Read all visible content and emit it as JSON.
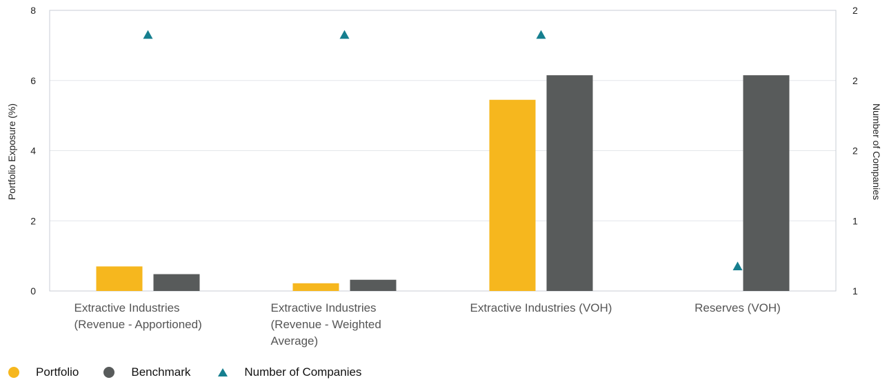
{
  "chart_data": {
    "type": "bar",
    "categories": [
      [
        "Extractive Industries",
        "(Revenue - Apportioned)"
      ],
      [
        "Extractive Industries",
        "(Revenue - Weighted",
        "Average)"
      ],
      [
        "Extractive Industries (VOH)"
      ],
      [
        "Reserves (VOH)"
      ]
    ],
    "series": [
      {
        "name": "Portfolio",
        "kind": "bar",
        "axis": "left",
        "color": "#f6b71e",
        "values": [
          0.7,
          0.22,
          5.45,
          0
        ]
      },
      {
        "name": "Benchmark",
        "kind": "bar",
        "axis": "left",
        "color": "#585b5b",
        "values": [
          0.48,
          0.32,
          6.15,
          6.15
        ]
      },
      {
        "name": "Number of Companies",
        "kind": "marker",
        "axis": "right",
        "color": "#167f8f",
        "values": [
          2,
          2,
          2,
          1
        ]
      }
    ],
    "ylabel": "Portfolio Exposure (%)",
    "y2label": "Number of Companies",
    "ylim": [
      0,
      8
    ],
    "yticks": [
      "0",
      "2",
      "4",
      "6",
      "8"
    ],
    "y2_tick_labels": [
      "1",
      "1",
      "2",
      "2",
      "2"
    ],
    "marker_positions_left_scale": [
      7.3,
      7.3,
      7.3,
      0.7
    ],
    "grid": true,
    "legend_position": "bottom-left"
  },
  "legend": [
    {
      "label": "Portfolio",
      "shape": "circle",
      "color": "#f6b71e"
    },
    {
      "label": "Benchmark",
      "shape": "circle",
      "color": "#585b5b"
    },
    {
      "label": "Number of Companies",
      "shape": "triangle",
      "color": "#167f8f"
    }
  ]
}
